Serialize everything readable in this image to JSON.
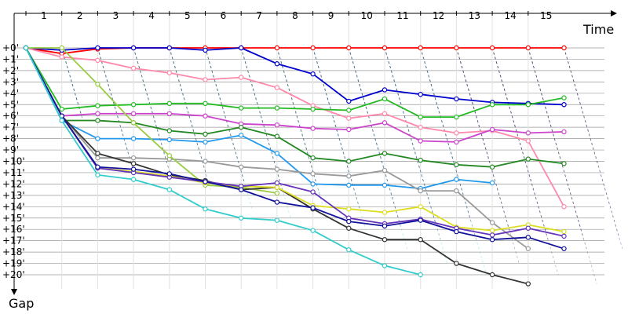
{
  "chart_data": {
    "type": "line",
    "xlabel": "Time",
    "ylabel": "Gap",
    "x_ticks": [
      "1",
      "2",
      "3",
      "4",
      "5",
      "6",
      "7",
      "8",
      "9",
      "10",
      "11",
      "12",
      "13",
      "14",
      "15"
    ],
    "y_ticks": [
      "+0'",
      "+1'",
      "+2'",
      "+3'",
      "+4'",
      "+5'",
      "+6'",
      "+7'",
      "+8'",
      "+9'",
      "+10'",
      "+11'",
      "+12'",
      "+13'",
      "+14'",
      "+15'",
      "+16'",
      "+17'",
      "+18'",
      "+19'",
      "+20'"
    ],
    "xlim": [
      0.5,
      16.2
    ],
    "ylim": [
      0,
      20.5
    ],
    "grid": true,
    "series": [
      {
        "color": "#ff0000",
        "points": [
          [
            1,
            0
          ],
          [
            2,
            0.5
          ],
          [
            3,
            0.1
          ],
          [
            4,
            0
          ],
          [
            5,
            0
          ],
          [
            6,
            0
          ],
          [
            7,
            0
          ],
          [
            8,
            0
          ],
          [
            9,
            0
          ],
          [
            10,
            0
          ],
          [
            11,
            0
          ],
          [
            12,
            0
          ],
          [
            13,
            0
          ],
          [
            14,
            0
          ],
          [
            15,
            0
          ],
          [
            16,
            0
          ]
        ]
      },
      {
        "color": "#0000cc",
        "points": [
          [
            1,
            0
          ],
          [
            2,
            0.2
          ],
          [
            3,
            0
          ],
          [
            4,
            0
          ],
          [
            5,
            0
          ],
          [
            6,
            0.2
          ],
          [
            7,
            0
          ],
          [
            8,
            1.4
          ],
          [
            9,
            2.3
          ],
          [
            10,
            4.7
          ],
          [
            11,
            3.7
          ],
          [
            12,
            4.1
          ],
          [
            13,
            4.5
          ],
          [
            14,
            4.8
          ],
          [
            15,
            4.9
          ],
          [
            16,
            5
          ]
        ]
      },
      {
        "color": "#ff88aa",
        "points": [
          [
            1,
            0
          ],
          [
            2,
            0.8
          ],
          [
            3,
            1.1
          ],
          [
            4,
            1.8
          ],
          [
            5,
            2.2
          ],
          [
            6,
            2.8
          ],
          [
            7,
            2.6
          ],
          [
            8,
            3.5
          ],
          [
            9,
            5.1
          ],
          [
            10,
            6.2
          ],
          [
            11,
            5.8
          ],
          [
            12,
            7
          ],
          [
            13,
            7.5
          ],
          [
            14,
            7.3
          ],
          [
            15,
            8.2
          ],
          [
            16,
            14
          ]
        ]
      },
      {
        "color": "#22bb22",
        "points": [
          [
            1,
            0
          ],
          [
            2,
            5.4
          ],
          [
            3,
            5.1
          ],
          [
            4,
            5
          ],
          [
            5,
            4.9
          ],
          [
            6,
            4.9
          ],
          [
            7,
            5.3
          ],
          [
            8,
            5.3
          ],
          [
            9,
            5.4
          ],
          [
            10,
            5.5
          ],
          [
            11,
            4.5
          ],
          [
            12,
            6.1
          ],
          [
            13,
            6.1
          ],
          [
            14,
            5
          ],
          [
            15,
            5
          ],
          [
            16,
            4.4
          ]
        ]
      },
      {
        "color": "#cc44cc",
        "points": [
          [
            1,
            0
          ],
          [
            2,
            6
          ],
          [
            3,
            5.8
          ],
          [
            4,
            5.8
          ],
          [
            5,
            5.8
          ],
          [
            6,
            6
          ],
          [
            7,
            6.7
          ],
          [
            8,
            6.8
          ],
          [
            9,
            7.1
          ],
          [
            10,
            7.2
          ],
          [
            11,
            6.6
          ],
          [
            12,
            8.2
          ],
          [
            13,
            8.3
          ],
          [
            14,
            7.2
          ],
          [
            15,
            7.5
          ],
          [
            16,
            7.4
          ]
        ]
      },
      {
        "color": "#228822",
        "points": [
          [
            1,
            0
          ],
          [
            2,
            6.4
          ],
          [
            3,
            6.4
          ],
          [
            4,
            6.6
          ],
          [
            5,
            7.3
          ],
          [
            6,
            7.6
          ],
          [
            7,
            7
          ],
          [
            8,
            7.8
          ],
          [
            9,
            9.7
          ],
          [
            10,
            10
          ],
          [
            11,
            9.3
          ],
          [
            12,
            9.9
          ],
          [
            13,
            10.3
          ],
          [
            14,
            10.5
          ],
          [
            15,
            9.8
          ],
          [
            16,
            10.2
          ]
        ]
      },
      {
        "color": "#2299ee",
        "points": [
          [
            1,
            0
          ],
          [
            2,
            6.4
          ],
          [
            3,
            8
          ],
          [
            4,
            8
          ],
          [
            5,
            8.1
          ],
          [
            6,
            8.3
          ],
          [
            7,
            7.7
          ],
          [
            8,
            9.3
          ],
          [
            9,
            12
          ],
          [
            10,
            12.1
          ],
          [
            11,
            12.1
          ],
          [
            12,
            12.4
          ],
          [
            13,
            11.6
          ],
          [
            14,
            11.9
          ]
        ]
      },
      {
        "color": "#999999",
        "points": [
          [
            1,
            0
          ],
          [
            2,
            6
          ],
          [
            3,
            9.7
          ],
          [
            4,
            9.7
          ],
          [
            5,
            9.8
          ],
          [
            6,
            10
          ],
          [
            7,
            10.5
          ],
          [
            8,
            10.7
          ],
          [
            9,
            11.1
          ],
          [
            10,
            11.3
          ],
          [
            11,
            10.8
          ],
          [
            12,
            12.6
          ],
          [
            13,
            12.6
          ],
          [
            14,
            15.4
          ],
          [
            15,
            17.7
          ]
        ]
      },
      {
        "color": "#99cc44",
        "points": [
          [
            1,
            0
          ],
          [
            2,
            0
          ],
          [
            3,
            3.2
          ],
          [
            4,
            6.6
          ],
          [
            5,
            9.5
          ],
          [
            6,
            12.1
          ],
          [
            7,
            12.3
          ],
          [
            8,
            12.8
          ]
        ]
      },
      {
        "color": "#333333",
        "points": [
          [
            1,
            0
          ],
          [
            2,
            6
          ],
          [
            3,
            9.3
          ],
          [
            4,
            10.2
          ],
          [
            5,
            11.2
          ],
          [
            6,
            11.7
          ],
          [
            7,
            12.5
          ],
          [
            8,
            12.3
          ],
          [
            9,
            14.2
          ],
          [
            10,
            15.9
          ],
          [
            11,
            16.9
          ],
          [
            12,
            16.9
          ],
          [
            13,
            19
          ],
          [
            14,
            20
          ],
          [
            15,
            20.8
          ]
        ]
      },
      {
        "color": "#dddd22",
        "points": [
          [
            1,
            0
          ],
          [
            2,
            6
          ],
          [
            3,
            10.6
          ],
          [
            4,
            10.9
          ],
          [
            5,
            11.3
          ],
          [
            6,
            11.9
          ],
          [
            7,
            12.2
          ],
          [
            8,
            12.3
          ],
          [
            9,
            13.9
          ],
          [
            10,
            14.2
          ],
          [
            11,
            14.5
          ],
          [
            12,
            14
          ],
          [
            13,
            15.8
          ],
          [
            14,
            16.1
          ],
          [
            15,
            15.6
          ],
          [
            16,
            16.2
          ]
        ]
      },
      {
        "color": "#6633bb",
        "points": [
          [
            1,
            0
          ],
          [
            2,
            6
          ],
          [
            3,
            10.6
          ],
          [
            4,
            11
          ],
          [
            5,
            11.4
          ],
          [
            6,
            11.8
          ],
          [
            7,
            12.2
          ],
          [
            8,
            11.9
          ],
          [
            9,
            12.7
          ],
          [
            10,
            15
          ],
          [
            11,
            15.5
          ],
          [
            12,
            15.1
          ],
          [
            13,
            15.9
          ],
          [
            14,
            16.5
          ],
          [
            15,
            15.9
          ],
          [
            16,
            16.6
          ]
        ]
      },
      {
        "color": "#111199",
        "points": [
          [
            1,
            0
          ],
          [
            2,
            6
          ],
          [
            3,
            10.5
          ],
          [
            4,
            10.7
          ],
          [
            5,
            11.1
          ],
          [
            6,
            11.8
          ],
          [
            7,
            12.5
          ],
          [
            8,
            13.6
          ],
          [
            9,
            14.1
          ],
          [
            10,
            15.3
          ],
          [
            11,
            15.7
          ],
          [
            12,
            15.2
          ],
          [
            13,
            16.2
          ],
          [
            14,
            16.9
          ],
          [
            15,
            16.7
          ],
          [
            16,
            17.7
          ]
        ]
      },
      {
        "color": "#33cccc",
        "points": [
          [
            1,
            0
          ],
          [
            2,
            6.4
          ],
          [
            3,
            11.2
          ],
          [
            4,
            11.6
          ],
          [
            5,
            12.5
          ],
          [
            6,
            14.2
          ],
          [
            7,
            15
          ],
          [
            8,
            15.2
          ],
          [
            9,
            16.1
          ],
          [
            10,
            17.8
          ],
          [
            11,
            19.2
          ],
          [
            12,
            20
          ]
        ]
      }
    ]
  }
}
